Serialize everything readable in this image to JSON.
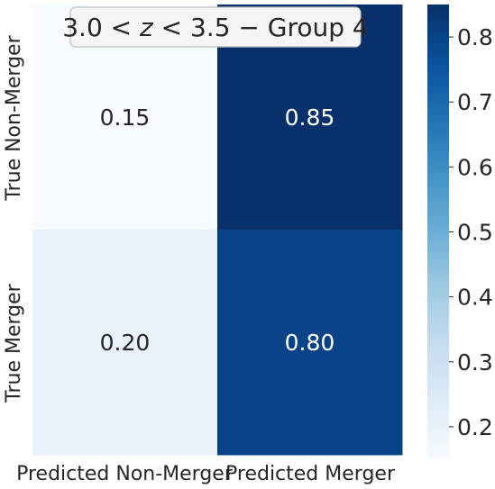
{
  "chart_data": {
    "type": "heatmap",
    "title_parts": {
      "before_italic": "3.0 < ",
      "italic": "z",
      "after_italic": " < 3.5 − Group 4"
    },
    "x_categories": [
      "Predicted Non-Merger",
      "Predicted Merger"
    ],
    "y_categories": [
      "True Non-Merger",
      "True Merger"
    ],
    "values": [
      [
        0.15,
        0.85
      ],
      [
        0.2,
        0.8
      ]
    ],
    "cell_labels": [
      [
        "0.15",
        "0.85"
      ],
      [
        "0.20",
        "0.80"
      ]
    ],
    "colormap": "Blues",
    "colorbar": {
      "range": [
        0.15,
        0.85
      ],
      "ticks": [
        0.2,
        0.3,
        0.4,
        0.5,
        0.6,
        0.7,
        0.8
      ],
      "tick_labels": [
        "0.2",
        "0.3",
        "0.4",
        "0.5",
        "0.6",
        "0.7",
        "0.8"
      ]
    },
    "colors": {
      "blues_stops": [
        "#f7fbff",
        "#deebf7",
        "#c6dbef",
        "#9ecae1",
        "#6baed6",
        "#4292c6",
        "#2171b5",
        "#08519c",
        "#08306b"
      ],
      "title_box_fill": "#f5f5f5",
      "title_box_stroke": "#bdbdbd",
      "dark_text": "#262626",
      "light_text": "#ffffff"
    }
  }
}
